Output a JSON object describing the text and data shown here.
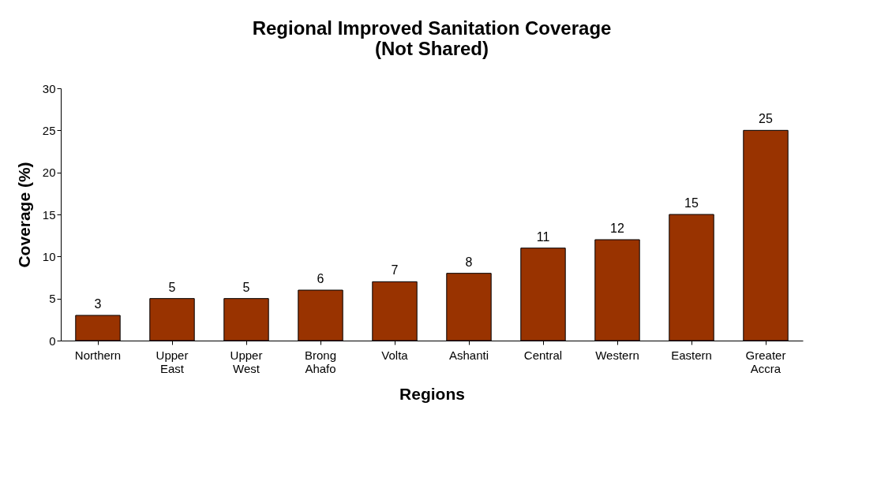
{
  "chart_data": {
    "type": "bar",
    "title": "Regional Improved Sanitation Coverage\n(Not Shared)",
    "xlabel": "Regions",
    "ylabel": "Coverage (%)",
    "categories": [
      "Northern",
      "Upper East",
      "Upper West",
      "Brong Ahafo",
      "Volta",
      "Ashanti",
      "Central",
      "Western",
      "Eastern",
      "Greater Accra"
    ],
    "values": [
      3,
      5,
      5,
      6,
      7,
      8,
      11,
      12,
      15,
      25
    ],
    "color": "#993300",
    "ylim": [
      0,
      30
    ],
    "yticks": [
      0,
      5,
      10,
      15,
      20,
      25,
      30
    ],
    "grid": false,
    "data_labels": true
  }
}
